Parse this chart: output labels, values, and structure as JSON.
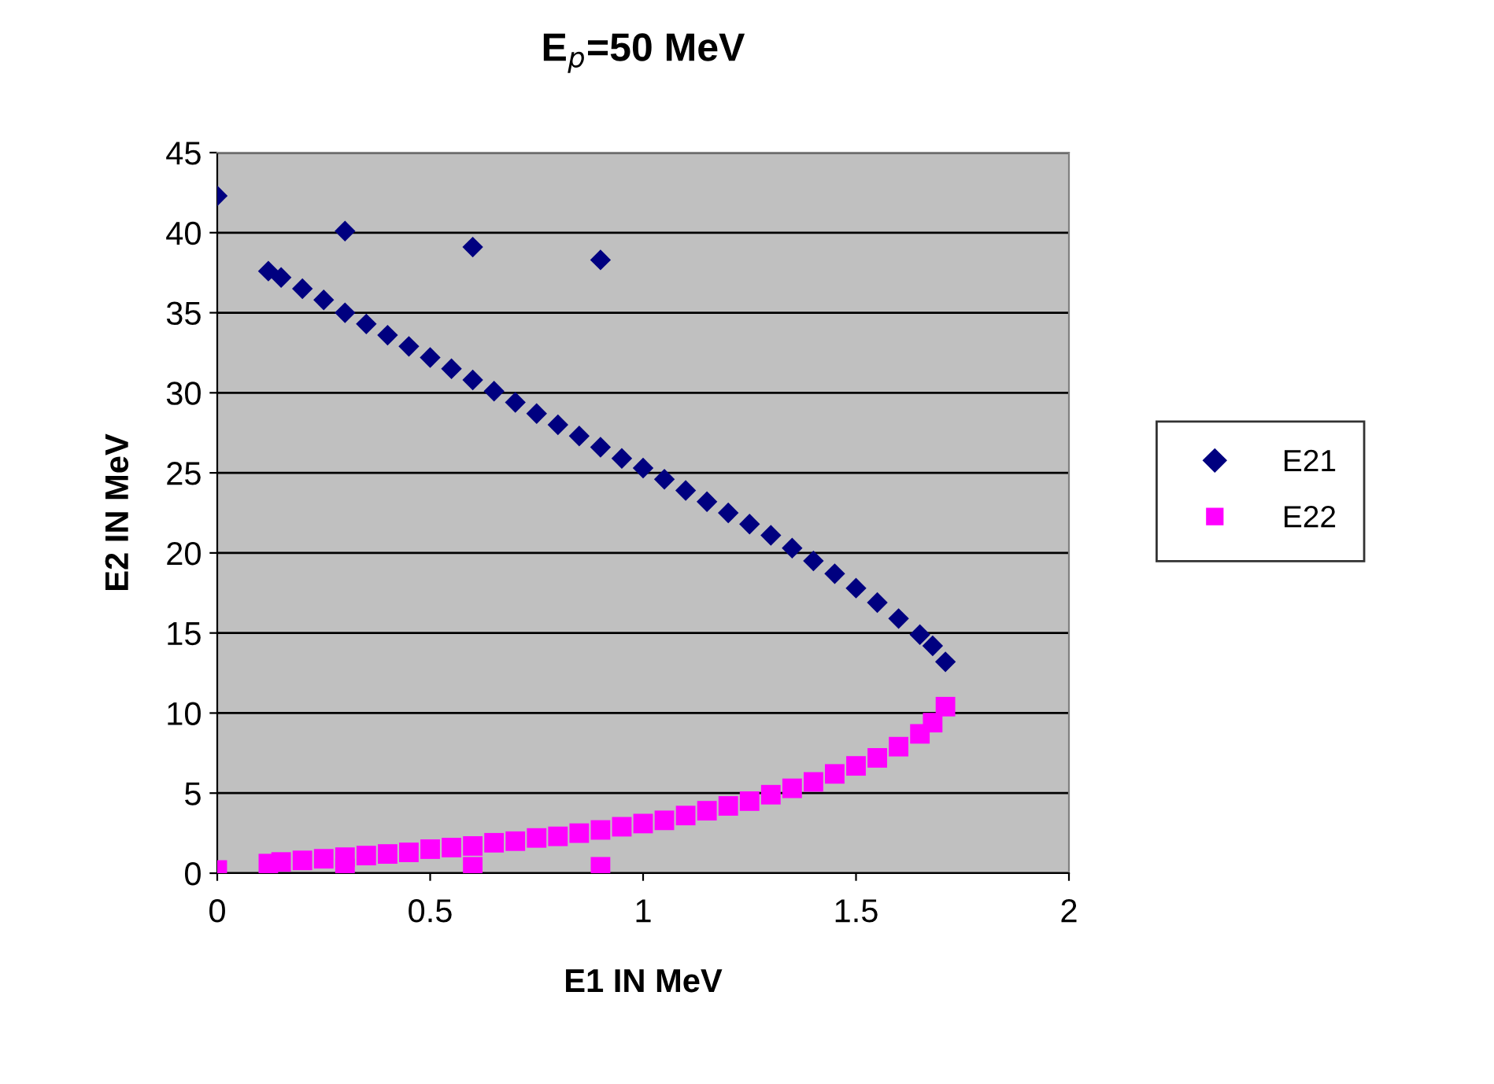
{
  "chart_data": {
    "type": "scatter",
    "title": "E$_{p}$=50 MeV",
    "xlabel": "E1 IN MeV",
    "ylabel": "E2 IN MeV",
    "xlim": [
      0,
      2
    ],
    "xticks": [
      0,
      0.5,
      1,
      1.5,
      2
    ],
    "ylim": [
      0,
      45
    ],
    "yticks": [
      0,
      5,
      10,
      15,
      20,
      25,
      30,
      35,
      40,
      45
    ],
    "grid": "y",
    "legend": "right",
    "series": [
      {
        "name": "E21",
        "color": "#000080",
        "marker": "diamond",
        "x": [
          0,
          0.3,
          0.6,
          0.9,
          0.12,
          0.15,
          0.2,
          0.25,
          0.3,
          0.35,
          0.4,
          0.45,
          0.5,
          0.55,
          0.6,
          0.65,
          0.7,
          0.75,
          0.8,
          0.85,
          0.9,
          0.95,
          1.0,
          1.05,
          1.1,
          1.15,
          1.2,
          1.25,
          1.3,
          1.35,
          1.4,
          1.45,
          1.5,
          1.55,
          1.6,
          1.65,
          1.68,
          1.71
        ],
        "values": [
          42.3,
          40.1,
          39.1,
          38.3,
          37.6,
          37.2,
          36.5,
          35.8,
          35.0,
          34.3,
          33.6,
          32.9,
          32.2,
          31.5,
          30.8,
          30.1,
          29.4,
          28.7,
          28.0,
          27.3,
          26.6,
          25.9,
          25.3,
          24.6,
          23.9,
          23.2,
          22.5,
          21.8,
          21.1,
          20.3,
          19.5,
          18.7,
          17.8,
          16.9,
          15.9,
          14.9,
          14.2,
          13.2
        ]
      },
      {
        "name": "E22",
        "color": "#ff00ff",
        "marker": "square",
        "x": [
          0.12,
          0.15,
          0.2,
          0.25,
          0.3,
          0.35,
          0.4,
          0.45,
          0.5,
          0.55,
          0.6,
          0.65,
          0.7,
          0.75,
          0.8,
          0.85,
          0.9,
          0.95,
          1.0,
          1.05,
          1.1,
          1.15,
          1.2,
          1.25,
          1.3,
          1.35,
          1.4,
          1.45,
          1.5,
          1.55,
          1.6,
          1.65,
          1.68,
          1.71,
          0,
          0.3,
          0.6,
          0.9
        ],
        "values": [
          0.6,
          0.7,
          0.8,
          0.9,
          1.0,
          1.1,
          1.2,
          1.3,
          1.5,
          1.6,
          1.7,
          1.9,
          2.0,
          2.2,
          2.3,
          2.5,
          2.7,
          2.9,
          3.1,
          3.3,
          3.6,
          3.9,
          4.2,
          4.5,
          4.9,
          5.3,
          5.7,
          6.2,
          6.7,
          7.2,
          7.9,
          8.7,
          9.4,
          10.4,
          0.2,
          0.3,
          0.4,
          0.4
        ]
      }
    ]
  }
}
